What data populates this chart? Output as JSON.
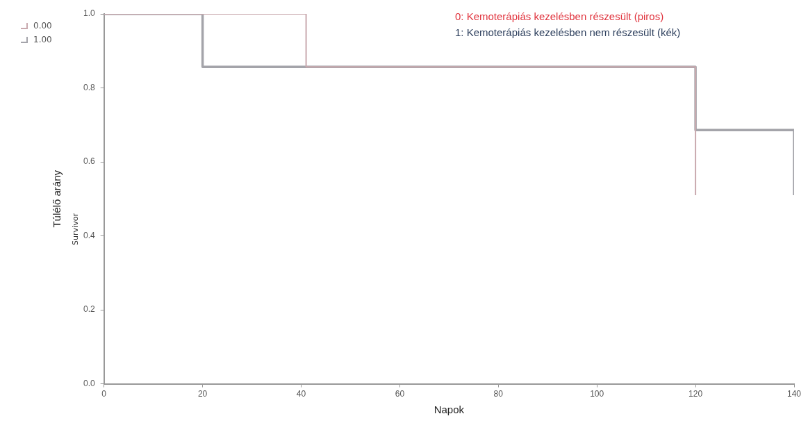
{
  "chart_data": {
    "type": "step",
    "xlabel": "Napok",
    "ylabel": "Túlélő arány",
    "annotations": [
      "0: Kemoterápiás kezelésben részesült (piros)",
      "1: Kemoterápiás kezelésben nem részesült (kék)",
      "Survivor"
    ],
    "series": [
      {
        "name": "0.00",
        "color": "#c9a9ae",
        "x": [
          0,
          41,
          120
        ],
        "values": [
          1,
          0.857,
          0.51
        ]
      },
      {
        "name": "1.00",
        "color": "#a4a4aa",
        "x": [
          0,
          20,
          120,
          140
        ],
        "values": [
          1,
          0.857,
          0.686,
          0.51
        ]
      }
    ],
    "xlim": [
      0,
      140
    ],
    "xticks": [
      0,
      20,
      40,
      60,
      80,
      100,
      120,
      140
    ],
    "ylim": [
      0,
      1
    ],
    "yticks": [
      {
        "value": 0,
        "label": "0.0"
      },
      {
        "value": 0.2,
        "label": "0.2"
      },
      {
        "value": 0.4,
        "label": "0.4"
      },
      {
        "value": 0.6,
        "label": "0.6"
      },
      {
        "value": 0.8,
        "label": "0.8"
      },
      {
        "value": 1,
        "label": "1.0"
      }
    ],
    "grid": false,
    "legend": "top left",
    "marker": "none",
    "line_style": "solid"
  }
}
